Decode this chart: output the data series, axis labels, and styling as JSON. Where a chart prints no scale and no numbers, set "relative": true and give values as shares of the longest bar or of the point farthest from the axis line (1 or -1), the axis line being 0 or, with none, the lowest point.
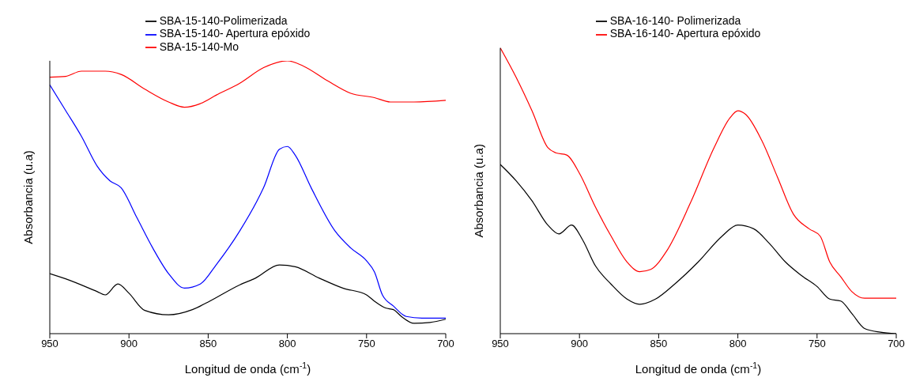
{
  "chart_data": [
    {
      "type": "line",
      "relative": true,
      "xlabel": "Longitud de onda (cm$^{-1}$)",
      "ylabel": "Absorbancia (u.a)",
      "xlim": [
        950,
        700
      ],
      "xticks": [
        950,
        900,
        850,
        800,
        750,
        700
      ],
      "legend": "top",
      "marker": "none",
      "line_style": "solid",
      "series": [
        {
          "name": "SBA-15-140-Polimerizada",
          "color": "#000000",
          "x": [
            950,
            940,
            920,
            915,
            907,
            900,
            890,
            875,
            860,
            850,
            830,
            820,
            805,
            795,
            780,
            765,
            750,
            745,
            738,
            733,
            728,
            720,
            710,
            700
          ],
          "values": [
            0.22,
            0.201,
            0.154,
            0.142,
            0.182,
            0.148,
            0.085,
            0.069,
            0.088,
            0.116,
            0.179,
            0.204,
            0.252,
            0.245,
            0.204,
            0.167,
            0.142,
            0.119,
            0.094,
            0.088,
            0.063,
            0.038,
            0.041,
            0.053
          ]
        },
        {
          "name": "SBA-15-140- Apertura epóxido",
          "color": "#0000ff",
          "x": [
            950,
            940,
            930,
            920,
            912,
            905,
            895,
            885,
            875,
            865,
            855,
            845,
            830,
            815,
            805,
            800,
            795,
            785,
            770,
            760,
            750,
            745,
            740,
            733,
            725,
            715,
            700
          ],
          "values": [
            0.912,
            0.818,
            0.723,
            0.613,
            0.56,
            0.535,
            0.425,
            0.314,
            0.22,
            0.167,
            0.182,
            0.252,
            0.377,
            0.535,
            0.676,
            0.686,
            0.654,
            0.535,
            0.377,
            0.314,
            0.267,
            0.226,
            0.142,
            0.101,
            0.063,
            0.057,
            0.057
          ]
        },
        {
          "name": "SBA-15-140-Mo",
          "color": "#ff0000",
          "x": [
            950,
            940,
            930,
            915,
            905,
            890,
            875,
            865,
            855,
            845,
            830,
            815,
            800,
            790,
            775,
            760,
            745,
            735,
            720,
            700
          ],
          "values": [
            0.94,
            0.943,
            0.962,
            0.962,
            0.95,
            0.896,
            0.849,
            0.83,
            0.843,
            0.874,
            0.918,
            0.975,
            1,
            0.981,
            0.928,
            0.881,
            0.865,
            0.849,
            0.849,
            0.855
          ]
        }
      ]
    },
    {
      "type": "line",
      "relative": true,
      "xlabel": "Longitud de onda (cm$^{-1}$)",
      "ylabel": "Absorbancia (u.a)",
      "xlim": [
        950,
        700
      ],
      "xticks": [
        950,
        900,
        850,
        800,
        750,
        700
      ],
      "legend": "top",
      "marker": "none",
      "line_style": "solid",
      "series": [
        {
          "name": "SBA-16-140- Polimerizada",
          "color": "#000000",
          "x": [
            950,
            940,
            930,
            920,
            913,
            905,
            898,
            890,
            880,
            870,
            862,
            852,
            840,
            825,
            810,
            800,
            790,
            780,
            770,
            760,
            750,
            742,
            735,
            728,
            720,
            710,
            700
          ],
          "values": [
            0.592,
            0.535,
            0.465,
            0.38,
            0.349,
            0.38,
            0.328,
            0.238,
            0.173,
            0.121,
            0.103,
            0.121,
            0.173,
            0.251,
            0.341,
            0.38,
            0.367,
            0.315,
            0.251,
            0.204,
            0.165,
            0.121,
            0.114,
            0.07,
            0.018,
            0.005,
            0
          ]
        },
        {
          "name": "SBA-16-140- Apertura epóxido",
          "color": "#ff0000",
          "x": [
            950,
            940,
            930,
            920,
            915,
            908,
            900,
            890,
            880,
            870,
            862,
            855,
            845,
            830,
            815,
            805,
            800,
            795,
            785,
            775,
            765,
            755,
            748,
            742,
            735,
            728,
            720,
            700
          ],
          "values": [
            1,
            0.897,
            0.78,
            0.651,
            0.633,
            0.625,
            0.561,
            0.444,
            0.341,
            0.251,
            0.217,
            0.225,
            0.289,
            0.457,
            0.651,
            0.755,
            0.78,
            0.767,
            0.677,
            0.548,
            0.419,
            0.367,
            0.341,
            0.251,
            0.199,
            0.147,
            0.124,
            0.124
          ]
        }
      ]
    }
  ]
}
